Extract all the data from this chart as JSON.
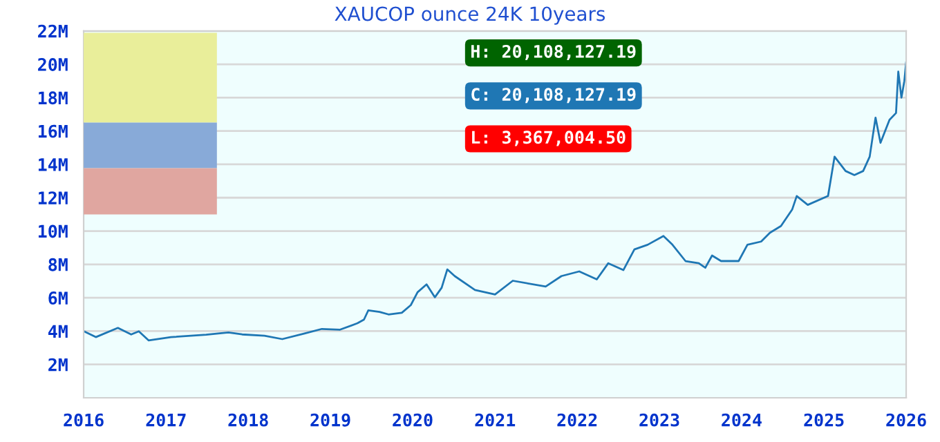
{
  "chart_data": {
    "type": "line",
    "title": "XAUCOP ounce 24K 10years",
    "x": [
      "2016-01-01",
      "2016-02-24",
      "2016-06-01",
      "2016-07-30",
      "2016-09-02",
      "2016-10-16",
      "2017-01-23",
      "2017-06-28",
      "2017-10-05",
      "2017-12-05",
      "2018-03-14",
      "2018-06-01",
      "2018-09-05",
      "2018-11-24",
      "2019-02-11",
      "2019-05-01",
      "2019-05-30",
      "2019-06-18",
      "2019-08-07",
      "2019-09-16",
      "2019-11-14",
      "2019-12-24",
      "2020-01-23",
      "2020-03-03",
      "2020-04-09",
      "2020-05-09",
      "2020-06-03",
      "2020-07-06",
      "2020-10-04",
      "2021-01-01",
      "2021-03-21",
      "2021-08-14",
      "2021-10-23",
      "2022-01-10",
      "2022-03-29",
      "2022-05-19",
      "2022-07-25",
      "2022-09-12",
      "2022-11-10",
      "2023-01-19",
      "2023-02-28",
      "2023-04-27",
      "2023-06-25",
      "2023-07-24",
      "2023-08-23",
      "2023-10-02",
      "2023-12-19",
      "2024-01-27",
      "2024-03-28",
      "2024-05-06",
      "2024-06-24",
      "2024-08-13",
      "2024-09-02",
      "2024-10-21",
      "2025-01-19",
      "2025-02-17",
      "2025-04-07",
      "2025-05-16",
      "2025-06-24",
      "2025-07-23",
      "2025-08-18",
      "2025-09-09",
      "2025-10-19",
      "2025-11-17",
      "2025-11-27",
      "2025-12-11",
      "2025-12-24",
      "2026-01-01"
    ],
    "series": [
      {
        "color": "#1f77b4",
        "values": [
          4000000,
          3640000,
          4190000,
          3800000,
          3990000,
          3440000,
          3640000,
          3780000,
          3920000,
          3800000,
          3720000,
          3520000,
          3850000,
          4130000,
          4080000,
          4470000,
          4690000,
          5240000,
          5150000,
          5000000,
          5100000,
          5560000,
          6330000,
          6800000,
          6030000,
          6600000,
          7700000,
          7300000,
          6470000,
          6200000,
          7020000,
          6670000,
          7300000,
          7580000,
          7100000,
          8070000,
          7660000,
          8900000,
          9180000,
          9700000,
          9180000,
          8200000,
          8070000,
          7800000,
          8530000,
          8200000,
          8200000,
          9180000,
          9370000,
          9900000,
          10300000,
          11300000,
          12100000,
          11570000,
          12100000,
          14460000,
          13600000,
          13360000,
          13600000,
          14460000,
          16800000,
          15290000,
          16670000,
          17080000,
          19560000,
          18000000,
          19000000,
          20108127.19
        ]
      }
    ],
    "xlim": [
      "2016-01-01",
      "2026-01-01"
    ],
    "xticks": [
      {
        "value": "2016-01-01",
        "label": "2016"
      },
      {
        "value": "2017-01-01",
        "label": "2017"
      },
      {
        "value": "2018-01-01",
        "label": "2018"
      },
      {
        "value": "2019-01-01",
        "label": "2019"
      },
      {
        "value": "2020-01-01",
        "label": "2020"
      },
      {
        "value": "2021-01-01",
        "label": "2021"
      },
      {
        "value": "2022-01-01",
        "label": "2022"
      },
      {
        "value": "2023-01-01",
        "label": "2023"
      },
      {
        "value": "2024-01-01",
        "label": "2024"
      },
      {
        "value": "2025-01-01",
        "label": "2025"
      },
      {
        "value": "2026-01-01",
        "label": "2026"
      }
    ],
    "ylim": [
      0,
      22000000
    ],
    "yticks": [
      {
        "value": 2000000,
        "label": "2M"
      },
      {
        "value": 4000000,
        "label": "4M"
      },
      {
        "value": 6000000,
        "label": "6M"
      },
      {
        "value": 8000000,
        "label": "8M"
      },
      {
        "value": 10000000,
        "label": "10M"
      },
      {
        "value": 12000000,
        "label": "12M"
      },
      {
        "value": 14000000,
        "label": "14M"
      },
      {
        "value": 16000000,
        "label": "16M"
      },
      {
        "value": 18000000,
        "label": "18M"
      },
      {
        "value": 20000000,
        "label": "20M"
      },
      {
        "value": 22000000,
        "label": "22M"
      }
    ],
    "grid": "y",
    "marker": "none",
    "line_style": "solid",
    "annotations": [
      "H: 20,108,127.19",
      "C: 20,108,127.19",
      "L: 3,367,004.50"
    ]
  }
}
